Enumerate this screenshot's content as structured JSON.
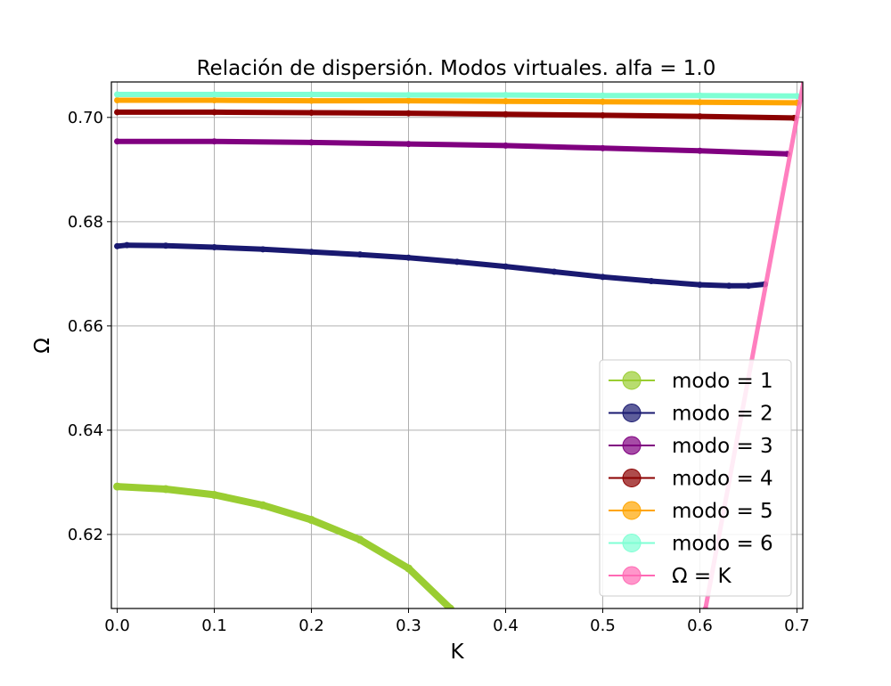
{
  "chart_data": {
    "type": "line",
    "title": "Relación de dispersión. Modos virtuales. alfa = 1.0",
    "xlabel": "K",
    "ylabel": "Ω",
    "xlim": [
      -0.006,
      0.706
    ],
    "ylim": [
      0.6058,
      0.7068
    ],
    "x_ticks": [
      0.0,
      0.1,
      0.2,
      0.3,
      0.4,
      0.5,
      0.6,
      0.7
    ],
    "x_tick_labels": [
      "0.0",
      "0.1",
      "0.2",
      "0.3",
      "0.4",
      "0.5",
      "0.6",
      "0.7"
    ],
    "y_ticks": [
      0.62,
      0.64,
      0.66,
      0.68,
      0.7
    ],
    "y_tick_labels": [
      "0.62",
      "0.64",
      "0.66",
      "0.68",
      "0.70"
    ],
    "grid": true,
    "legend_position": "lower-right",
    "series": [
      {
        "name": "modo = 1",
        "color": "#9acd32",
        "x": [
          0.0,
          0.05,
          0.1,
          0.15,
          0.2,
          0.25,
          0.3,
          0.343
        ],
        "y": [
          0.6292,
          0.6287,
          0.6276,
          0.6256,
          0.6228,
          0.619,
          0.6135,
          0.6058
        ]
      },
      {
        "name": "modo = 2",
        "color": "#191970",
        "x": [
          0.0,
          0.01,
          0.05,
          0.1,
          0.15,
          0.2,
          0.25,
          0.3,
          0.35,
          0.4,
          0.45,
          0.5,
          0.55,
          0.6,
          0.63,
          0.65,
          0.667
        ],
        "y": [
          0.6753,
          0.6755,
          0.6754,
          0.6751,
          0.6747,
          0.6742,
          0.6737,
          0.6731,
          0.6723,
          0.6714,
          0.6704,
          0.6694,
          0.6686,
          0.6679,
          0.6677,
          0.6677,
          0.668
        ]
      },
      {
        "name": "modo = 3",
        "color": "#800080",
        "x": [
          0.0,
          0.1,
          0.2,
          0.3,
          0.4,
          0.5,
          0.6,
          0.69
        ],
        "y": [
          0.6954,
          0.6954,
          0.6952,
          0.6949,
          0.6946,
          0.6941,
          0.6936,
          0.693
        ]
      },
      {
        "name": "modo = 4",
        "color": "#8b0000",
        "x": [
          0.0,
          0.1,
          0.2,
          0.3,
          0.4,
          0.5,
          0.6,
          0.697
        ],
        "y": [
          0.701,
          0.701,
          0.7009,
          0.7008,
          0.7006,
          0.7004,
          0.7002,
          0.6999
        ]
      },
      {
        "name": "modo = 5",
        "color": "#ffa500",
        "x": [
          0.0,
          0.1,
          0.2,
          0.3,
          0.4,
          0.5,
          0.6,
          0.7
        ],
        "y": [
          0.7033,
          0.7033,
          0.7032,
          0.7032,
          0.7031,
          0.703,
          0.7029,
          0.7028
        ]
      },
      {
        "name": "modo = 6",
        "color": "#7fffd4",
        "x": [
          0.0,
          0.1,
          0.2,
          0.3,
          0.4,
          0.5,
          0.6,
          0.7
        ],
        "y": [
          0.7044,
          0.7044,
          0.7044,
          0.7043,
          0.7043,
          0.7042,
          0.7042,
          0.7041
        ]
      },
      {
        "name": "Ω = K",
        "color": "#ff69b4",
        "x": [
          0.6058,
          0.7068
        ],
        "y": [
          0.6058,
          0.7068
        ]
      }
    ]
  }
}
